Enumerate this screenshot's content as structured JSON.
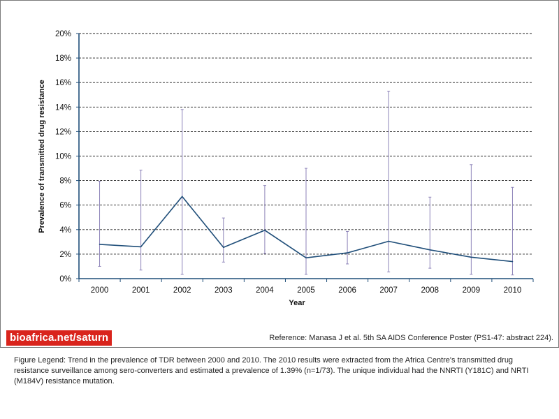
{
  "chart_data": {
    "type": "line",
    "xlabel": "Year",
    "ylabel": "Prevalence of transmitted drug resistance",
    "ylim": [
      0,
      20
    ],
    "y_ticks": [
      "0%",
      "2%",
      "4%",
      "6%",
      "8%",
      "10%",
      "12%",
      "14%",
      "16%",
      "18%",
      "20%"
    ],
    "categories": [
      "2000",
      "2001",
      "2002",
      "2003",
      "2004",
      "2005",
      "2006",
      "2007",
      "2008",
      "2009",
      "2010"
    ],
    "series": [
      {
        "values": [
          2.8,
          2.6,
          6.7,
          2.55,
          3.95,
          1.7,
          2.1,
          3.05,
          2.35,
          1.75,
          1.39
        ],
        "error_low": [
          1.0,
          0.7,
          0.35,
          1.35,
          2.05,
          0.35,
          1.2,
          0.55,
          0.85,
          0.35,
          0.3
        ],
        "error_high": [
          7.95,
          8.85,
          13.8,
          4.95,
          7.6,
          9.0,
          3.85,
          15.3,
          6.65,
          9.3,
          7.45
        ],
        "color": "#1f4e79",
        "error_color": "#8c82b8"
      }
    ],
    "grid": "horizontal dashed"
  },
  "branding": {
    "site": "bioafrica.net/saturn",
    "color": "#d9241c"
  },
  "reference": "Reference: Manasa J et al. 5th  SA AIDS Conference Poster (PS1-47: abstract 224).",
  "figure_legend": "Figure Legend: Trend in the prevalence of TDR between 2000 and 2010. The 2010 results were extracted from the Africa Centre's transmitted drug resistance surveillance among sero-converters and estimated a prevalence of 1.39% (n=1/73). The unique individual had the NNRTI (Y181C) and NRTI (M184V) resistance mutation."
}
